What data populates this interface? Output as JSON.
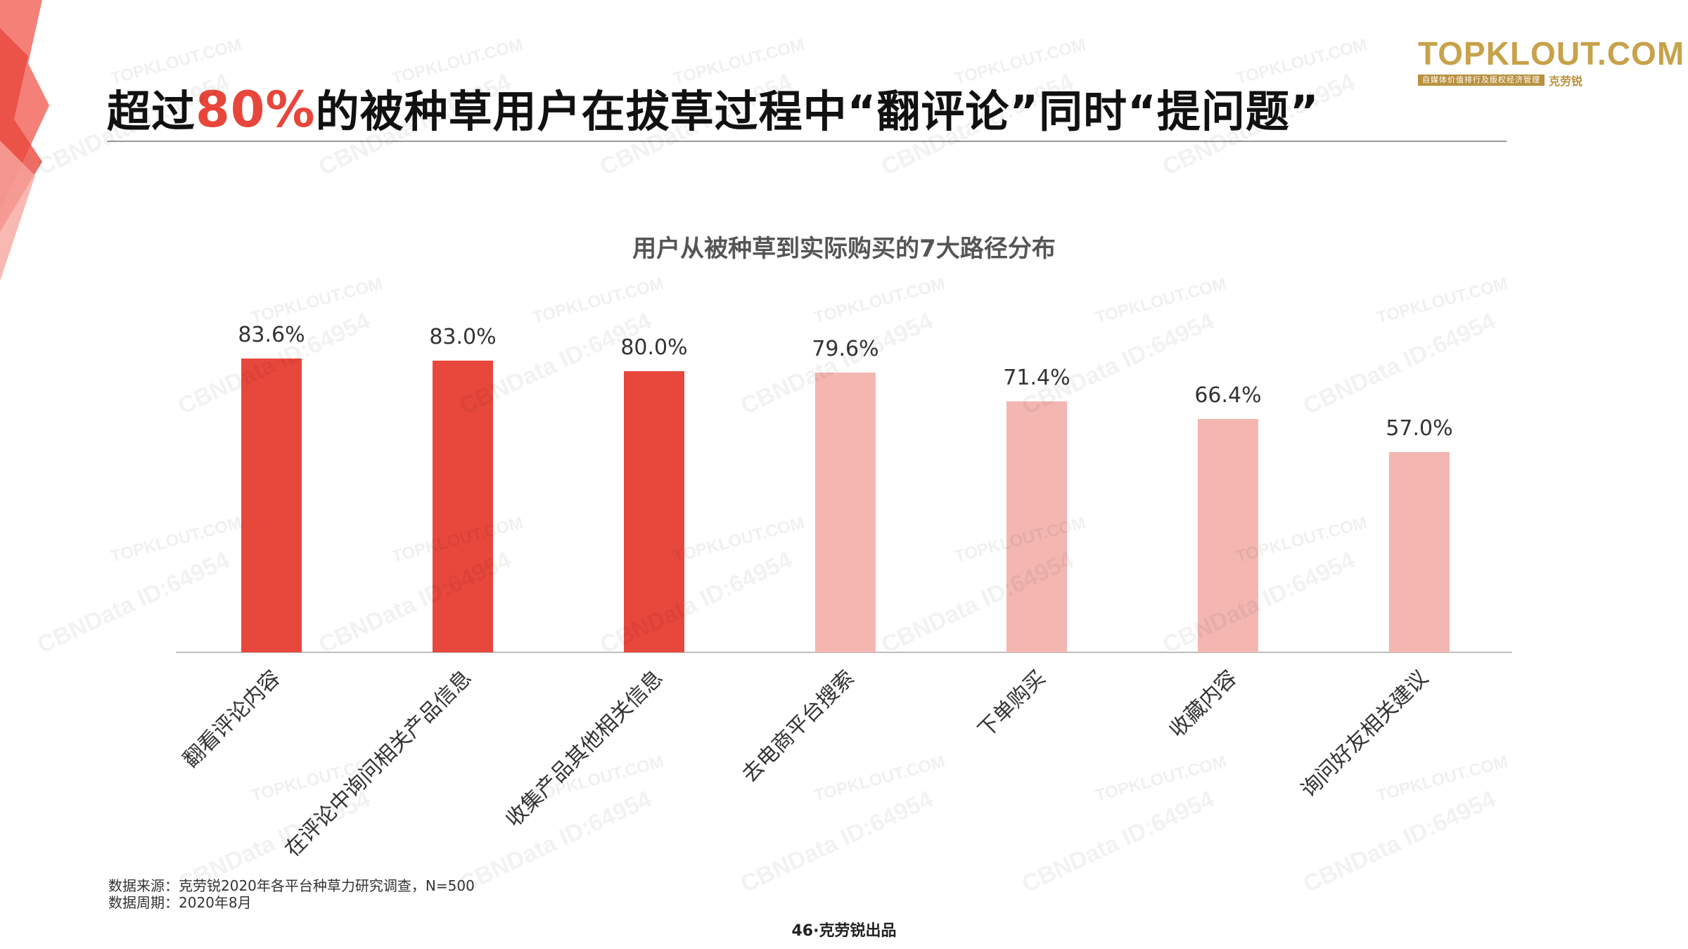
{
  "headline": {
    "before": "超过",
    "highlight": "80%",
    "after": "的被种草用户在拔草过程中“翻评论”同时“提问题”"
  },
  "logo": {
    "brand": "TOPKLOUT.COM",
    "tagline": "自媒体价值排行及版权经济管理",
    "cn_name": "克劳锐"
  },
  "chart_data": {
    "type": "bar",
    "title": "用户从被种草到实际购买的7大路径分布",
    "categories": [
      "翻看评论内容",
      "在评论中询问相关产品信息",
      "收集产品其他相关信息",
      "去电商平台搜索",
      "下单购买",
      "收藏内容",
      "询问好友相关建议"
    ],
    "values": [
      83.6,
      83.0,
      80.0,
      79.6,
      71.4,
      66.4,
      57.0
    ],
    "labels": [
      "83.6%",
      "83.0%",
      "80.0%",
      "79.6%",
      "71.4%",
      "66.4%",
      "57.0%"
    ],
    "highlighted": [
      true,
      true,
      true,
      false,
      false,
      false,
      false
    ],
    "colors": {
      "highlight": "#e8473c",
      "normal": "#f4b6b1"
    },
    "ylim": [
      0,
      100
    ],
    "grid": false,
    "xlabel": "",
    "ylabel": ""
  },
  "footnote": {
    "source": "数据来源：克劳锐2020年各平台种草力研究调查，N=500",
    "period": "数据周期：2020年8月"
  },
  "page_number": "46·克劳锐出品",
  "watermark": {
    "text_a": "CBNData ID:64954",
    "text_b": "TOPKLOUT.COM"
  }
}
